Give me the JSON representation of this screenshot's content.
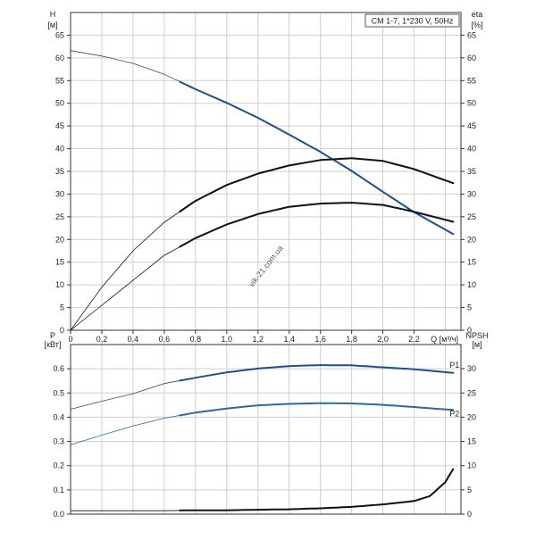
{
  "chart_data": [
    {
      "type": "line",
      "panel": "top",
      "title": "CM 1-7, 1*230 V, 50Hz",
      "watermark": "vik-21.com.ua",
      "xlabel": "Q [м³/ч]",
      "xlim": [
        0,
        2.5
      ],
      "x_ticks": [
        0,
        0.2,
        0.4,
        0.6,
        0.8,
        1.0,
        1.2,
        1.4,
        1.6,
        1.8,
        2.0,
        2.2
      ],
      "x_tick_labels": [
        "0",
        "0,2",
        "0,4",
        "0,6",
        "0,8",
        "1,0",
        "1,2",
        "1,4",
        "1,6",
        "1,8",
        "2,0",
        "2,2"
      ],
      "left_axis": {
        "label": "H",
        "unit": "[м]",
        "ylim": [
          0,
          70
        ],
        "ticks": [
          0,
          5,
          10,
          15,
          20,
          25,
          30,
          35,
          40,
          45,
          50,
          55,
          60,
          65
        ]
      },
      "right_axis": {
        "label": "eta",
        "unit": "[%]",
        "ylim": [
          0,
          70
        ],
        "ticks": [
          0,
          5,
          10,
          15,
          20,
          25,
          30,
          35,
          40,
          45,
          50,
          55,
          60,
          65
        ]
      },
      "grid": true,
      "legend": "none",
      "series": [
        {
          "axis": "left",
          "color": "#1f4e8c",
          "operating_range": [
            0.67,
            2.45
          ],
          "x": [
            0,
            0.2,
            0.4,
            0.6,
            0.8,
            1.0,
            1.2,
            1.4,
            1.6,
            1.8,
            2.0,
            2.2,
            2.45
          ],
          "values": [
            61.6,
            60.4,
            58.8,
            56.4,
            53.1,
            50.1,
            46.8,
            43.1,
            39.3,
            35.1,
            30.5,
            26.0,
            21.2
          ]
        },
        {
          "axis": "right",
          "color": "#111111",
          "operating_range": [
            0.67,
            2.45
          ],
          "x": [
            0,
            0.2,
            0.4,
            0.6,
            0.8,
            1.0,
            1.2,
            1.4,
            1.6,
            1.8,
            2.0,
            2.2,
            2.45
          ],
          "values": [
            0,
            9.5,
            17.5,
            23.8,
            28.5,
            32.0,
            34.5,
            36.3,
            37.5,
            37.9,
            37.3,
            35.5,
            32.4
          ]
        },
        {
          "axis": "right",
          "color": "#111111",
          "operating_range": [
            0.67,
            2.45
          ],
          "x": [
            0,
            0.2,
            0.4,
            0.6,
            0.8,
            1.0,
            1.2,
            1.4,
            1.6,
            1.8,
            2.0,
            2.2,
            2.45
          ],
          "values": [
            0,
            5.5,
            11.0,
            16.5,
            20.3,
            23.3,
            25.6,
            27.2,
            27.9,
            28.1,
            27.6,
            26.1,
            23.9
          ]
        }
      ]
    },
    {
      "type": "line",
      "panel": "bottom",
      "xlim": [
        0,
        2.5
      ],
      "left_axis": {
        "label": "P",
        "unit": "[кВт]",
        "ylim": [
          0,
          0.7
        ],
        "ticks": [
          0.0,
          0.1,
          0.2,
          0.3,
          0.4,
          0.5,
          0.6
        ],
        "tick_labels": [
          "0.0",
          "0.1",
          "0.2",
          "0.3",
          "0.4",
          "0.5",
          "0.6"
        ]
      },
      "right_axis": {
        "label": "NPSH",
        "unit": "[м]",
        "ylim": [
          0,
          35
        ],
        "ticks": [
          0,
          5,
          10,
          15,
          20,
          25,
          30
        ]
      },
      "grid": true,
      "legend": "none",
      "series": [
        {
          "name": "P1",
          "axis": "left",
          "color": "#1f4e8c",
          "operating_range": [
            0.67,
            2.45
          ],
          "x": [
            0,
            0.2,
            0.4,
            0.6,
            0.8,
            1.0,
            1.2,
            1.4,
            1.6,
            1.8,
            2.0,
            2.2,
            2.45
          ],
          "values": [
            0.433,
            0.466,
            0.497,
            0.539,
            0.563,
            0.585,
            0.601,
            0.611,
            0.615,
            0.614,
            0.606,
            0.598,
            0.583
          ]
        },
        {
          "name": "P2",
          "axis": "left",
          "color": "#2a6aa8",
          "operating_range": [
            0.67,
            2.45
          ],
          "x": [
            0,
            0.2,
            0.4,
            0.6,
            0.8,
            1.0,
            1.2,
            1.4,
            1.6,
            1.8,
            2.0,
            2.2,
            2.45
          ],
          "values": [
            0.286,
            0.326,
            0.364,
            0.396,
            0.419,
            0.436,
            0.449,
            0.455,
            0.458,
            0.457,
            0.451,
            0.442,
            0.43
          ]
        },
        {
          "axis": "right",
          "color": "#111111",
          "operating_range": [
            0.67,
            2.45
          ],
          "x": [
            0,
            0.2,
            0.4,
            0.6,
            0.8,
            1.0,
            1.2,
            1.4,
            1.6,
            1.8,
            2.0,
            2.2,
            2.3,
            2.4,
            2.45
          ],
          "values": [
            0.7,
            0.7,
            0.7,
            0.7,
            0.8,
            0.8,
            0.9,
            1.0,
            1.2,
            1.5,
            2.0,
            2.7,
            3.7,
            6.6,
            9.3
          ]
        }
      ]
    }
  ]
}
